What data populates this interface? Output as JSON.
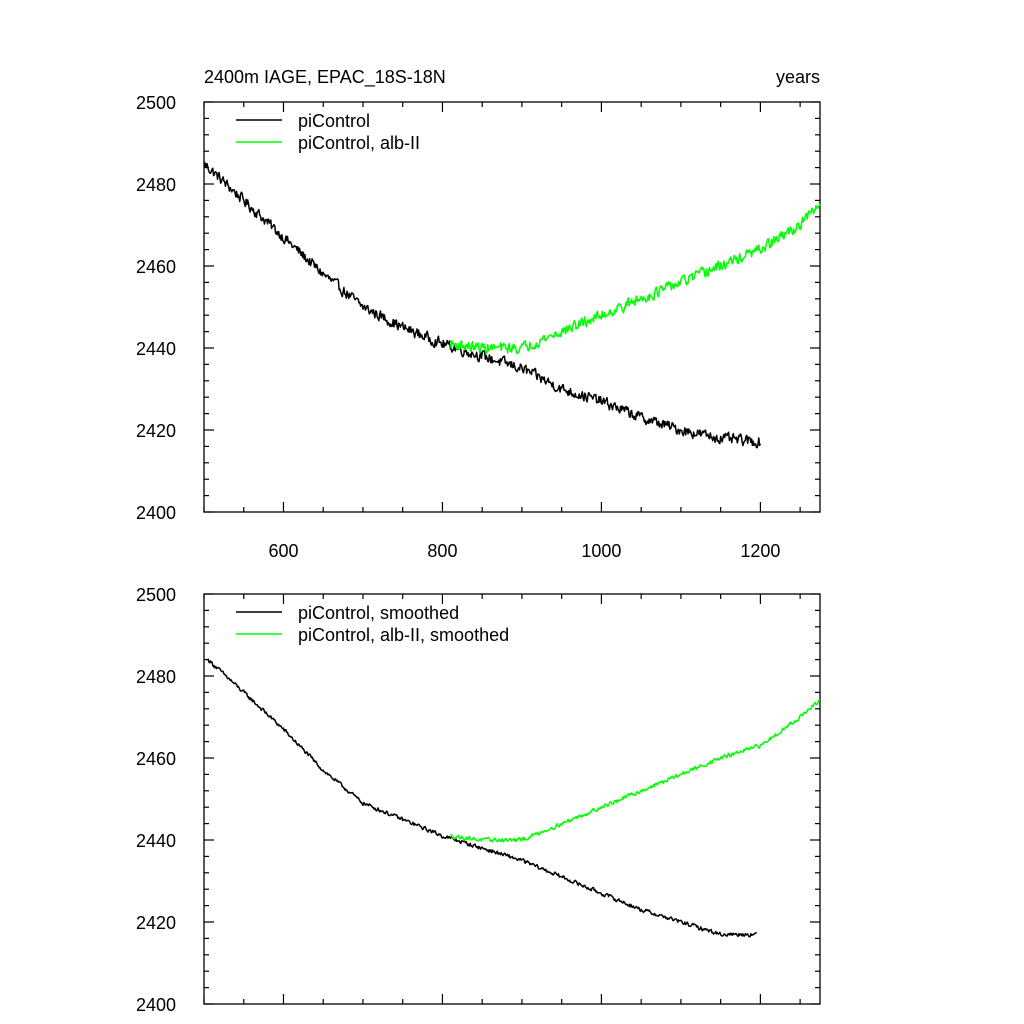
{
  "chart_data": [
    {
      "type": "line",
      "title": "2400m IAGE, EPAC_18S-18N",
      "units": "years",
      "xlim": [
        500,
        1275
      ],
      "ylim": [
        2400,
        2500
      ],
      "xticks": [
        600,
        800,
        1000,
        1200
      ],
      "xtick_labels": [
        "600",
        "800",
        "1000",
        "1200"
      ],
      "yticks": [
        2400,
        2420,
        2440,
        2460,
        2480,
        2500
      ],
      "ytick_labels": [
        "2400",
        "2420",
        "2440",
        "2460",
        "2480",
        "2500"
      ],
      "legend_position": "top-left",
      "noise": 1.2,
      "series": [
        {
          "name": "piControl",
          "color": "#000000",
          "x": [
            500,
            550,
            600,
            650,
            700,
            750,
            800,
            850,
            900,
            950,
            1000,
            1050,
            1100,
            1150,
            1200
          ],
          "y": [
            2485,
            2476,
            2467,
            2458,
            2450,
            2445,
            2441,
            2438,
            2435,
            2430,
            2427,
            2423,
            2420,
            2418,
            2417
          ]
        },
        {
          "name": "piControl, alb-II",
          "color": "#00ff00",
          "x": [
            810,
            850,
            900,
            950,
            1000,
            1050,
            1100,
            1150,
            1200,
            1250,
            1275
          ],
          "y": [
            2441,
            2440,
            2440,
            2444,
            2448,
            2452,
            2456,
            2460,
            2464,
            2470,
            2475
          ]
        }
      ]
    },
    {
      "type": "line",
      "title": "",
      "units": "",
      "xlim": [
        500,
        1275
      ],
      "ylim": [
        2400,
        2500
      ],
      "xticks": [
        600,
        800,
        1000,
        1200
      ],
      "xtick_labels": [],
      "yticks": [
        2400,
        2420,
        2440,
        2460,
        2480,
        2500
      ],
      "ytick_labels": [
        "2400",
        "2420",
        "2440",
        "2460",
        "2480",
        "2500"
      ],
      "legend_position": "top-left",
      "noise": 0.45,
      "series": [
        {
          "name": "piControl, smoothed",
          "color": "#000000",
          "x": [
            505,
            550,
            600,
            650,
            700,
            750,
            800,
            850,
            900,
            950,
            1000,
            1050,
            1100,
            1150,
            1195
          ],
          "y": [
            2484,
            2476,
            2467,
            2457,
            2449,
            2445,
            2441,
            2438,
            2435,
            2431,
            2427,
            2423,
            2420,
            2417,
            2417
          ]
        },
        {
          "name": "piControl, alb-II, smoothed",
          "color": "#00ff00",
          "x": [
            810,
            850,
            900,
            950,
            1000,
            1050,
            1100,
            1150,
            1200,
            1250,
            1275
          ],
          "y": [
            2441,
            2440,
            2440,
            2444,
            2448,
            2452,
            2456,
            2460,
            2463,
            2470,
            2474
          ]
        }
      ]
    }
  ]
}
